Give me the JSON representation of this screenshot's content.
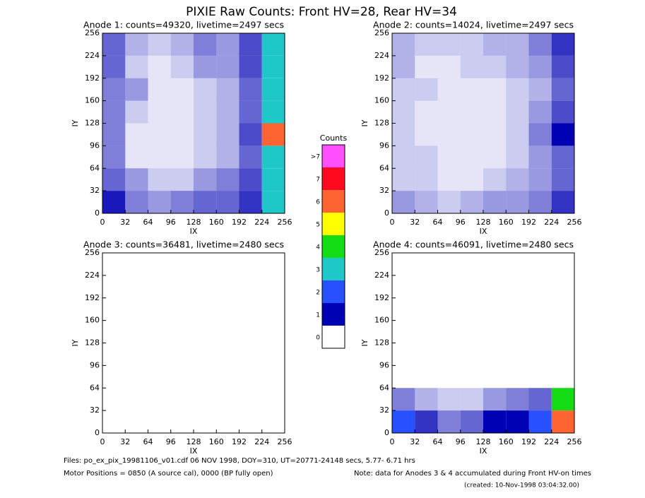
{
  "chart_data": {
    "type": "heatmap",
    "title": "PIXIE Raw Counts:  Front HV=28, Rear HV=34",
    "panels": [
      {
        "title": "Anode 1: counts=49320, livetime=2497 secs",
        "xlabel": "IX",
        "ylabel": "IY",
        "xlim": [
          0,
          256
        ],
        "ylim": [
          0,
          256
        ],
        "xticks": [
          0,
          32,
          64,
          96,
          128,
          160,
          192,
          224,
          256
        ],
        "yticks": [
          0,
          32,
          64,
          96,
          128,
          160,
          192,
          224,
          256
        ],
        "z": [
          [
            0.9,
            0.5,
            0.4,
            0.5,
            0.6,
            0.6,
            0.8,
            3
          ],
          [
            0.6,
            0.4,
            0.2,
            0.2,
            0.4,
            0.5,
            0.7,
            3
          ],
          [
            0.5,
            0.1,
            0.1,
            0.1,
            0.2,
            0.3,
            0.6,
            3
          ],
          [
            0.5,
            0.1,
            0.1,
            0.1,
            0.2,
            0.3,
            0.7,
            6
          ],
          [
            0.5,
            0.2,
            0.1,
            0.1,
            0.2,
            0.3,
            0.6,
            3
          ],
          [
            0.5,
            0.4,
            0.1,
            0.1,
            0.2,
            0.3,
            0.6,
            3
          ],
          [
            0.6,
            0.2,
            0.1,
            0.2,
            0.4,
            0.4,
            0.7,
            3
          ],
          [
            0.6,
            0.3,
            0.2,
            0.3,
            0.5,
            0.4,
            0.7,
            3
          ]
        ]
      },
      {
        "title": "Anode 2: counts=14024, livetime=2497 secs",
        "xlabel": "IX",
        "ylabel": "IY",
        "xlim": [
          0,
          256
        ],
        "ylim": [
          0,
          256
        ],
        "xticks": [
          0,
          32,
          64,
          96,
          128,
          160,
          192,
          224,
          256
        ],
        "yticks": [
          0,
          32,
          64,
          96,
          128,
          160,
          192,
          224,
          256
        ],
        "z": [
          [
            0.4,
            0.3,
            0.2,
            0.3,
            0.4,
            0.4,
            0.5,
            0.8
          ],
          [
            0.2,
            0.2,
            0.1,
            0.1,
            0.2,
            0.3,
            0.4,
            0.6
          ],
          [
            0.2,
            0.2,
            0.1,
            0.1,
            0.1,
            0.2,
            0.4,
            0.6
          ],
          [
            0.2,
            0.1,
            0.1,
            0.1,
            0.1,
            0.2,
            0.5,
            1.2
          ],
          [
            0.2,
            0.1,
            0.1,
            0.1,
            0.1,
            0.2,
            0.4,
            0.7
          ],
          [
            0.2,
            0.2,
            0.1,
            0.1,
            0.1,
            0.2,
            0.3,
            0.6
          ],
          [
            0.3,
            0.1,
            0.1,
            0.2,
            0.2,
            0.3,
            0.4,
            0.7
          ],
          [
            0.3,
            0.2,
            0.2,
            0.2,
            0.3,
            0.3,
            0.5,
            0.8
          ]
        ]
      },
      {
        "title": "Anode 3: counts=36481, livetime=2480 secs",
        "xlabel": "IX",
        "ylabel": "IY",
        "xlim": [
          0,
          256
        ],
        "ylim": [
          0,
          256
        ],
        "xticks": [
          0,
          32,
          64,
          96,
          128,
          160,
          192,
          224,
          256
        ],
        "yticks": [
          0,
          32,
          64,
          96,
          128,
          160,
          192,
          224,
          256
        ],
        "z": [
          [
            0,
            0,
            0,
            0,
            0,
            0,
            0,
            0
          ],
          [
            0,
            0,
            0,
            0,
            0,
            0,
            0,
            0
          ],
          [
            0,
            0,
            0,
            0,
            0,
            0,
            0,
            0
          ],
          [
            0,
            0,
            0,
            0,
            0,
            0,
            0,
            0
          ],
          [
            0,
            0,
            0,
            0,
            0,
            0,
            0,
            0
          ],
          [
            0,
            0,
            0,
            0,
            0,
            0,
            0,
            0
          ],
          [
            0,
            0,
            0,
            0,
            0,
            0,
            0,
            0
          ],
          [
            0,
            0,
            0,
            0,
            0,
            0,
            0,
            0
          ]
        ]
      },
      {
        "title": "Anode 4: counts=46091, livetime=2480 secs",
        "xlabel": "IX",
        "ylabel": "IY",
        "xlim": [
          0,
          256
        ],
        "ylim": [
          0,
          256
        ],
        "xticks": [
          0,
          32,
          64,
          96,
          128,
          160,
          192,
          224,
          256
        ],
        "yticks": [
          0,
          32,
          64,
          96,
          128,
          160,
          192,
          224,
          256
        ],
        "z": [
          [
            2,
            0.8,
            0.5,
            0.6,
            1.2,
            1.5,
            2,
            6
          ],
          [
            0.5,
            0.3,
            0.2,
            0.2,
            0.4,
            0.5,
            0.6,
            4
          ],
          [
            0,
            0,
            0,
            0,
            0,
            0,
            0,
            0
          ],
          [
            0,
            0,
            0,
            0,
            0,
            0,
            0,
            0
          ],
          [
            0,
            0,
            0,
            0,
            0,
            0,
            0,
            0
          ],
          [
            0,
            0,
            0,
            0,
            0,
            0,
            0,
            0
          ],
          [
            0,
            0,
            0,
            0,
            0,
            0,
            0,
            0
          ],
          [
            0,
            0,
            0,
            0,
            0,
            0,
            0,
            0
          ]
        ]
      }
    ],
    "colorbar": {
      "title": "Counts",
      "labels": [
        "0",
        "1",
        "2",
        "3",
        "4",
        "5",
        "6",
        "7",
        ">7"
      ],
      "colors": [
        "#ffffff",
        "#0000b4",
        "#2850ff",
        "#1ec8c8",
        "#14dc14",
        "#ffff00",
        "#ff6432",
        "#ff0a1e",
        "#ff50ff"
      ]
    },
    "footer": {
      "files": "Files: po_ex_pix_19981106_v01.cdf   06 NOV 1998, DOY=310, UT=20771-24148 secs,  5.77- 6.71 hrs",
      "motor": "Motor Positions = 0850 (A source cal), 0000 (BP fully open)",
      "note": "Note: data for Anodes 3 & 4 accumulated during Front HV-on times",
      "created": "(created: 10-Nov-1998 03:04:32.00)"
    }
  }
}
